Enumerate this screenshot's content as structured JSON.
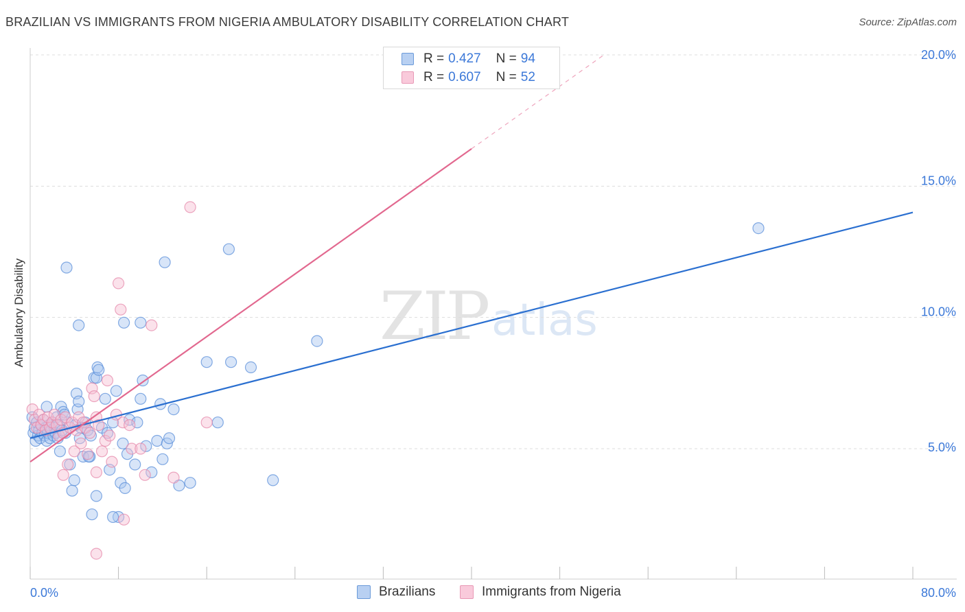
{
  "title": "BRAZILIAN VS IMMIGRANTS FROM NIGERIA AMBULATORY DISABILITY CORRELATION CHART",
  "source": "Source: ZipAtlas.com",
  "watermark": {
    "zip": "ZIP",
    "atlas": "atlas"
  },
  "legend_top": [
    {
      "r_label": "R =",
      "r_value": "0.427",
      "n_label": "N =",
      "n_value": "94"
    },
    {
      "r_label": "R =",
      "r_value": "0.607",
      "n_label": "N =",
      "n_value": "52"
    }
  ],
  "legend_bottom": [
    "Brazilians",
    "Immigrants from Nigeria"
  ],
  "colors": {
    "blue_fill": "#a9c6ef",
    "blue_stroke": "#5b8fd9",
    "blue_line": "#2a6fd0",
    "pink_fill": "#f7bed3",
    "pink_stroke": "#e58aab",
    "pink_line": "#e2688f",
    "tick_text": "#3b78d8",
    "grid": "#dddddd"
  },
  "chart_data": {
    "type": "scatter",
    "title": "BRAZILIAN VS IMMIGRANTS FROM NIGERIA AMBULATORY DISABILITY CORRELATION CHART",
    "xlabel": "",
    "ylabel": "Ambulatory Disability",
    "xlim": [
      0,
      80
    ],
    "ylim": [
      0,
      20.5
    ],
    "x_tick_labels": [
      "0.0%",
      "80.0%"
    ],
    "y_ticks": [
      5,
      10,
      15,
      20
    ],
    "y_tick_labels": [
      "5.0%",
      "10.0%",
      "15.0%",
      "20.0%"
    ],
    "grid": true,
    "series": [
      {
        "name": "Brazilians",
        "r": 0.427,
        "n": 94,
        "trend": {
          "x": [
            0,
            80
          ],
          "y": [
            5.4,
            14.0
          ],
          "dashed_from": null
        },
        "points": [
          [
            0.2,
            6.2
          ],
          [
            0.3,
            5.6
          ],
          [
            0.4,
            5.8
          ],
          [
            0.5,
            5.3
          ],
          [
            0.6,
            6.0
          ],
          [
            0.7,
            5.5
          ],
          [
            0.8,
            5.7
          ],
          [
            0.9,
            5.4
          ],
          [
            1.0,
            5.9
          ],
          [
            1.1,
            5.6
          ],
          [
            1.2,
            6.1
          ],
          [
            1.3,
            5.5
          ],
          [
            1.4,
            5.8
          ],
          [
            1.5,
            5.3
          ],
          [
            1.6,
            5.6
          ],
          [
            1.7,
            5.9
          ],
          [
            1.8,
            5.4
          ],
          [
            1.9,
            5.7
          ],
          [
            2.0,
            6.0
          ],
          [
            2.1,
            5.5
          ],
          [
            2.2,
            5.8
          ],
          [
            2.3,
            5.6
          ],
          [
            2.4,
            6.2
          ],
          [
            2.5,
            5.4
          ],
          [
            2.6,
            5.9
          ],
          [
            2.7,
            4.9
          ],
          [
            2.8,
            6.6
          ],
          [
            3.0,
            6.4
          ],
          [
            3.2,
            5.6
          ],
          [
            3.4,
            6.0
          ],
          [
            3.6,
            4.4
          ],
          [
            3.8,
            3.4
          ],
          [
            4.0,
            3.8
          ],
          [
            4.2,
            7.1
          ],
          [
            4.3,
            6.5
          ],
          [
            4.4,
            6.8
          ],
          [
            4.5,
            5.4
          ],
          [
            4.6,
            5.8
          ],
          [
            4.8,
            4.7
          ],
          [
            5.0,
            6.0
          ],
          [
            5.2,
            5.7
          ],
          [
            5.4,
            4.7
          ],
          [
            5.5,
            5.5
          ],
          [
            5.6,
            2.5
          ],
          [
            5.8,
            7.7
          ],
          [
            6.0,
            7.7
          ],
          [
            6.1,
            8.1
          ],
          [
            6.2,
            8.0
          ],
          [
            6.5,
            5.8
          ],
          [
            6.8,
            6.9
          ],
          [
            7.0,
            5.6
          ],
          [
            7.2,
            4.2
          ],
          [
            7.5,
            6.0
          ],
          [
            7.8,
            7.2
          ],
          [
            8.0,
            2.4
          ],
          [
            8.2,
            3.7
          ],
          [
            8.4,
            5.2
          ],
          [
            8.6,
            3.5
          ],
          [
            8.8,
            4.8
          ],
          [
            9.0,
            6.1
          ],
          [
            9.5,
            4.4
          ],
          [
            10.0,
            6.9
          ],
          [
            10.2,
            7.6
          ],
          [
            10.5,
            5.1
          ],
          [
            11.0,
            4.1
          ],
          [
            11.5,
            5.3
          ],
          [
            11.8,
            6.7
          ],
          [
            12.0,
            4.6
          ],
          [
            12.4,
            5.2
          ],
          [
            12.6,
            5.4
          ],
          [
            13.0,
            6.5
          ],
          [
            13.5,
            3.6
          ],
          [
            14.5,
            3.7
          ],
          [
            16.0,
            8.3
          ],
          [
            17.0,
            6.0
          ],
          [
            18.0,
            12.6
          ],
          [
            18.2,
            8.3
          ],
          [
            20.0,
            8.1
          ],
          [
            22.0,
            3.8
          ],
          [
            26.0,
            9.1
          ],
          [
            3.3,
            11.9
          ],
          [
            4.4,
            9.7
          ],
          [
            8.5,
            9.8
          ],
          [
            10.0,
            9.8
          ],
          [
            12.2,
            12.1
          ],
          [
            6.0,
            3.2
          ],
          [
            7.5,
            2.4
          ],
          [
            66.0,
            13.4
          ],
          [
            1.5,
            6.6
          ],
          [
            2.9,
            5.7
          ],
          [
            3.1,
            6.3
          ],
          [
            4.1,
            5.9
          ],
          [
            5.3,
            4.7
          ],
          [
            9.7,
            6.0
          ]
        ]
      },
      {
        "name": "Immigrants from Nigeria",
        "r": 0.607,
        "n": 52,
        "trend": {
          "x": [
            0,
            52
          ],
          "y": [
            4.5,
            20.0
          ],
          "dashed_from": 40
        },
        "points": [
          [
            0.2,
            6.5
          ],
          [
            0.4,
            6.1
          ],
          [
            0.6,
            5.8
          ],
          [
            0.8,
            6.3
          ],
          [
            1.0,
            5.9
          ],
          [
            1.2,
            6.1
          ],
          [
            1.4,
            5.7
          ],
          [
            1.6,
            6.2
          ],
          [
            1.8,
            5.8
          ],
          [
            2.0,
            6.0
          ],
          [
            2.2,
            6.3
          ],
          [
            2.4,
            5.9
          ],
          [
            2.6,
            5.5
          ],
          [
            2.8,
            6.1
          ],
          [
            3.0,
            5.6
          ],
          [
            3.2,
            6.2
          ],
          [
            3.4,
            4.4
          ],
          [
            3.6,
            5.8
          ],
          [
            3.8,
            6.0
          ],
          [
            4.0,
            4.9
          ],
          [
            4.2,
            5.7
          ],
          [
            4.4,
            6.2
          ],
          [
            4.6,
            5.2
          ],
          [
            4.8,
            6.0
          ],
          [
            5.0,
            5.8
          ],
          [
            5.2,
            4.8
          ],
          [
            5.4,
            5.6
          ],
          [
            5.6,
            7.3
          ],
          [
            5.8,
            7.0
          ],
          [
            6.0,
            6.2
          ],
          [
            6.2,
            5.9
          ],
          [
            6.5,
            4.9
          ],
          [
            6.8,
            5.3
          ],
          [
            7.0,
            7.6
          ],
          [
            7.2,
            5.5
          ],
          [
            7.4,
            4.5
          ],
          [
            7.8,
            6.3
          ],
          [
            8.0,
            11.3
          ],
          [
            8.2,
            10.3
          ],
          [
            8.4,
            6.0
          ],
          [
            9.0,
            5.9
          ],
          [
            9.2,
            5.0
          ],
          [
            10.0,
            5.0
          ],
          [
            10.4,
            4.0
          ],
          [
            11.0,
            9.7
          ],
          [
            13.0,
            3.9
          ],
          [
            14.5,
            14.2
          ],
          [
            16.0,
            6.0
          ],
          [
            3.0,
            4.0
          ],
          [
            6.0,
            4.1
          ],
          [
            8.5,
            2.3
          ],
          [
            6.0,
            1.0
          ]
        ]
      }
    ]
  }
}
